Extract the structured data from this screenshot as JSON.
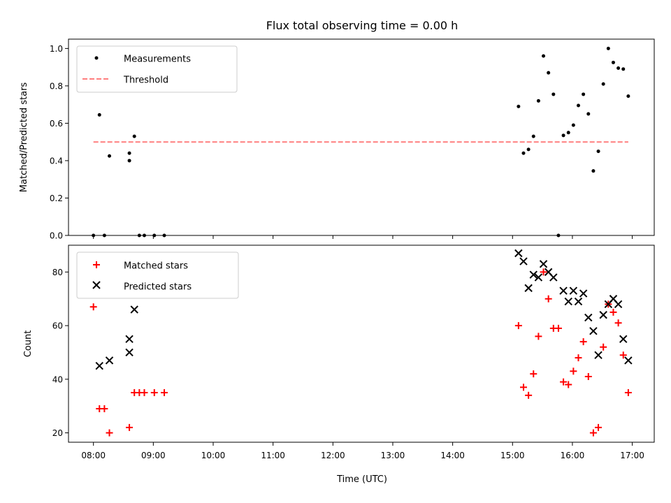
{
  "chart_data": [
    {
      "type": "scatter",
      "title": "Flux total observing time = 0.00 h",
      "xlabel": "",
      "ylabel": "Matched/Predicted stars",
      "xlim": [
        "07:35",
        "17:22"
      ],
      "ylim": [
        0.0,
        1.05
      ],
      "yticks": [
        "0.0",
        "0.2",
        "0.4",
        "0.6",
        "0.8",
        "1.0"
      ],
      "grid": false,
      "legend_placement": "upper-left",
      "colors": {
        "measurements": "#000000",
        "threshold": "#ff7f7f"
      },
      "series": [
        {
          "name": "Measurements",
          "marker": "dot",
          "x": [
            "08:00",
            "08:06",
            "08:11",
            "08:16",
            "08:36",
            "08:36",
            "08:41",
            "08:46",
            "08:51",
            "09:01",
            "09:11",
            "15:06",
            "15:11",
            "15:16",
            "15:21",
            "15:26",
            "15:31",
            "15:36",
            "15:41",
            "15:46",
            "15:51",
            "15:56",
            "16:01",
            "16:06",
            "16:11",
            "16:16",
            "16:21",
            "16:26",
            "16:31",
            "16:36",
            "16:41",
            "16:46",
            "16:51",
            "16:56"
          ],
          "y": [
            0.0,
            0.645,
            0.0,
            0.425,
            0.44,
            0.4,
            0.53,
            0.0,
            0.0,
            0.0,
            0.0,
            0.69,
            0.44,
            0.46,
            0.53,
            0.72,
            0.96,
            0.87,
            0.755,
            0.0,
            0.535,
            0.55,
            0.59,
            0.695,
            0.755,
            0.65,
            0.345,
            0.45,
            0.81,
            1.0,
            0.925,
            0.895,
            0.89,
            0.745
          ]
        },
        {
          "name": "Threshold",
          "style": "dashed",
          "x": [
            "08:00",
            "16:56"
          ],
          "y": [
            0.5,
            0.5
          ]
        }
      ]
    },
    {
      "type": "scatter",
      "title": "",
      "xlabel": "Time (UTC)",
      "ylabel": "Count",
      "xlim": [
        "07:35",
        "17:22"
      ],
      "ylim": [
        16.5,
        90
      ],
      "yticks": [
        "20",
        "40",
        "60",
        "80"
      ],
      "xticks": [
        "08:00",
        "09:00",
        "10:00",
        "11:00",
        "12:00",
        "13:00",
        "14:00",
        "15:00",
        "16:00",
        "17:00"
      ],
      "grid": false,
      "legend_placement": "upper-left",
      "colors": {
        "matched": "#ff0000",
        "predicted": "#000000"
      },
      "series": [
        {
          "name": "Matched stars",
          "marker": "plus",
          "x": [
            "08:00",
            "08:06",
            "08:11",
            "08:16",
            "08:36",
            "08:41",
            "08:46",
            "08:51",
            "09:01",
            "09:11",
            "15:06",
            "15:11",
            "15:16",
            "15:21",
            "15:26",
            "15:31",
            "15:36",
            "15:41",
            "15:46",
            "15:51",
            "15:56",
            "16:01",
            "16:06",
            "16:11",
            "16:16",
            "16:21",
            "16:26",
            "16:31",
            "16:36",
            "16:41",
            "16:46",
            "16:51",
            "16:56"
          ],
          "y": [
            67,
            29,
            29,
            20,
            22,
            35,
            35,
            35,
            35,
            35,
            60,
            37,
            34,
            42,
            56,
            80,
            70,
            59,
            59,
            39,
            38,
            43,
            48,
            54,
            41,
            20,
            22,
            52,
            68,
            65,
            61,
            49,
            35
          ]
        },
        {
          "name": "Predicted stars",
          "marker": "x",
          "x": [
            "08:06",
            "08:16",
            "08:36",
            "08:36",
            "08:41",
            "15:06",
            "15:11",
            "15:16",
            "15:21",
            "15:26",
            "15:31",
            "15:36",
            "15:41",
            "15:51",
            "15:56",
            "16:01",
            "16:06",
            "16:11",
            "16:16",
            "16:21",
            "16:26",
            "16:31",
            "16:36",
            "16:41",
            "16:46",
            "16:51",
            "16:56"
          ],
          "y": [
            45,
            47,
            55,
            50,
            66,
            87,
            84,
            74,
            79,
            78,
            83,
            80,
            78,
            73,
            69,
            73,
            69,
            72,
            63,
            58,
            49,
            64,
            68,
            70,
            68,
            55,
            47
          ]
        }
      ]
    }
  ]
}
